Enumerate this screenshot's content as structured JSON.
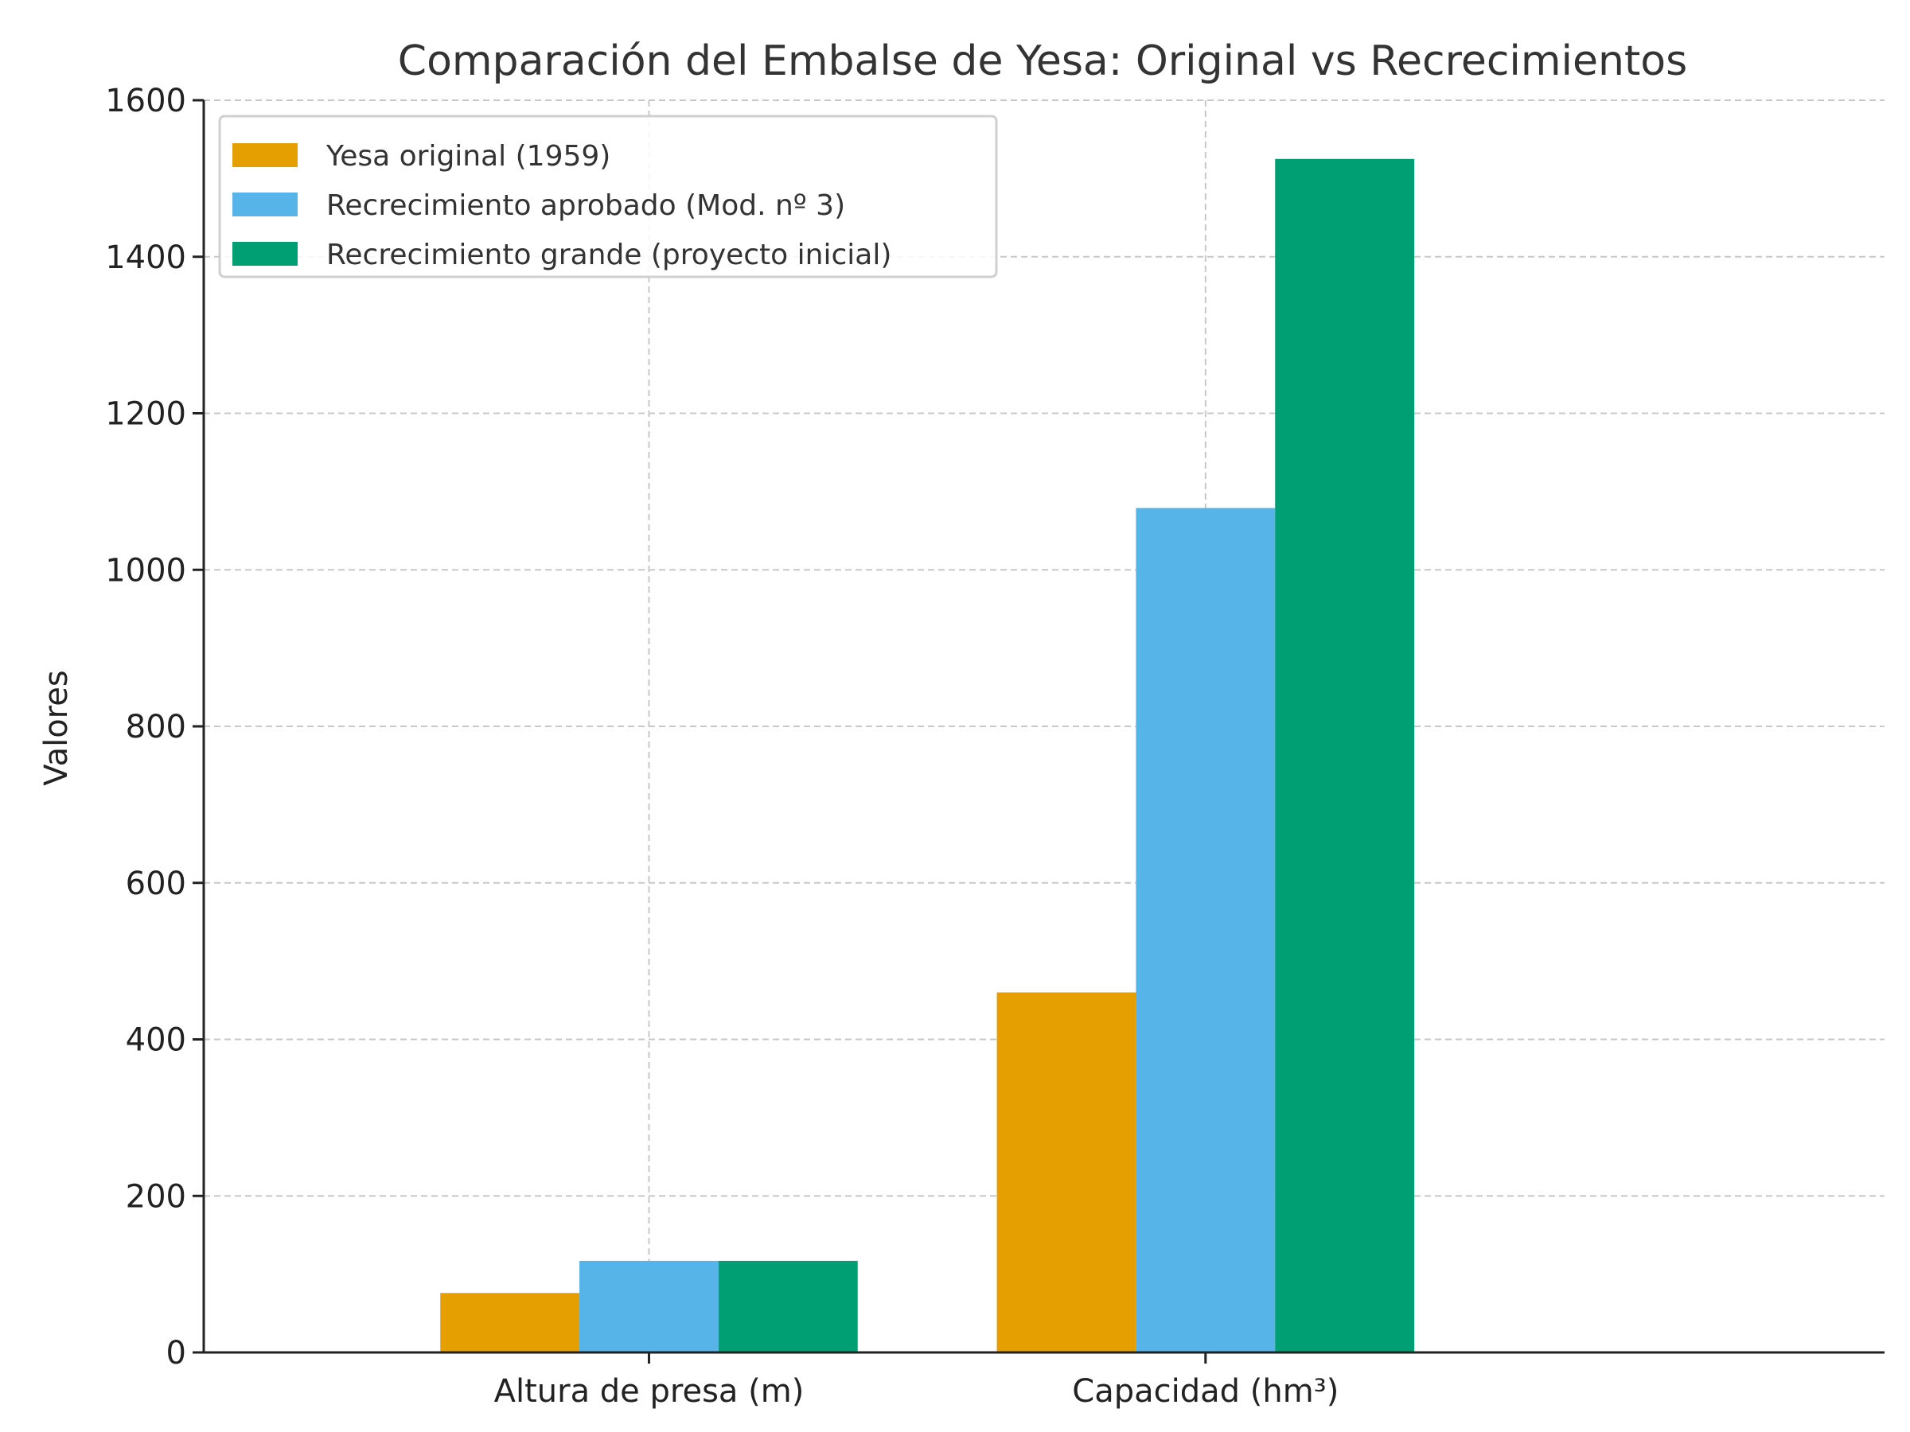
{
  "chart_data": {
    "type": "bar",
    "title": "Comparación del Embalse de Yesa: Original vs Recrecimientos",
    "xlabel": "",
    "ylabel": "Valores",
    "categories": [
      "Altura de presa (m)",
      "Capacidad (hm³)"
    ],
    "series": [
      {
        "name": "Yesa original (1959)",
        "color": "#E69F00",
        "values": [
          76,
          460
        ]
      },
      {
        "name": "Recrecimiento aprobado (Mod. nº 3)",
        "color": "#56B4E9",
        "values": [
          117,
          1079
        ]
      },
      {
        "name": "Recrecimiento grande (proyecto inicial)",
        "color": "#009E73",
        "values": [
          117,
          1525
        ]
      }
    ],
    "ylim": [
      0,
      1600
    ],
    "yticks": [
      0,
      200,
      400,
      600,
      800,
      1000,
      1200,
      1400,
      1600
    ],
    "grid": true,
    "legend_position": "top-left"
  }
}
